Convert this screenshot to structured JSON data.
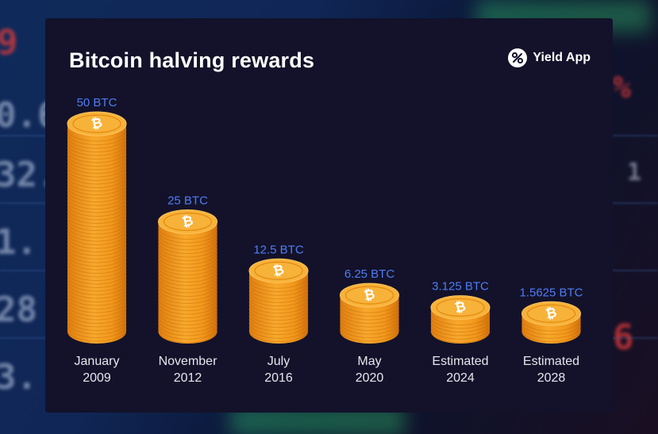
{
  "header": {
    "title": "Bitcoin halving rewards",
    "brand": "Yield App"
  },
  "colors": {
    "panel": "#13122a",
    "value_label": "#4f7df5",
    "coin_body": "#f29a1f",
    "coin_top": "#f7b23a"
  },
  "chart_data": {
    "type": "bar",
    "title": "Bitcoin halving rewards",
    "categories": [
      "January 2009",
      "November 2012",
      "July 2016",
      "May 2020",
      "Estimated 2024",
      "Estimated 2028"
    ],
    "category_lines": [
      [
        "January",
        "2009"
      ],
      [
        "November",
        "2012"
      ],
      [
        "July",
        "2016"
      ],
      [
        "May",
        "2020"
      ],
      [
        "Estimated",
        "2024"
      ],
      [
        "Estimated",
        "2028"
      ]
    ],
    "values": [
      50,
      25,
      12.5,
      6.25,
      3.125,
      1.5625
    ],
    "value_labels": [
      "50 BTC",
      "25 BTC",
      "12.5 BTC",
      "6.25 BTC",
      "3.125 BTC",
      "1.5625 BTC"
    ],
    "unit": "BTC",
    "xlabel": "",
    "ylabel": "",
    "legend": "none",
    "grid": false
  }
}
